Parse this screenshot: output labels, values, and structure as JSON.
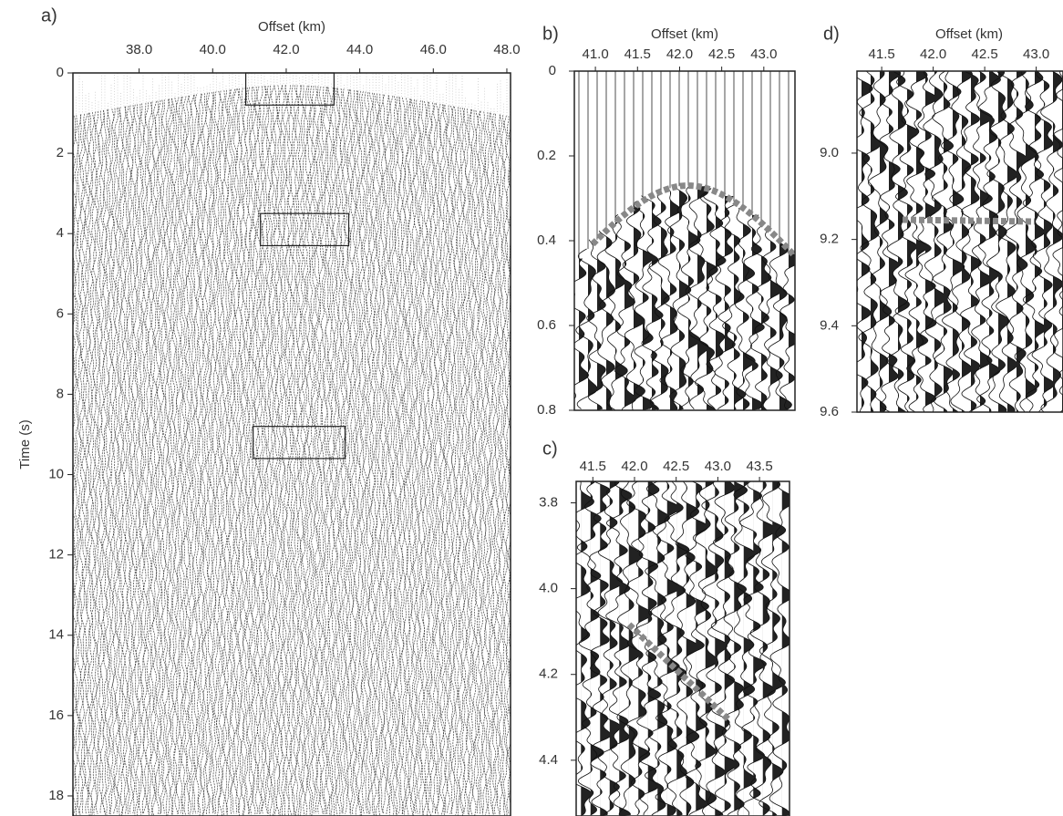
{
  "chart_data": [
    {
      "type": "seismic",
      "panel_label": "a)",
      "xlabel": "Offset (km)",
      "ylabel": "Time (s)",
      "xlim": [
        36.2,
        48.1
      ],
      "ylim": [
        0,
        18.5
      ],
      "y_inverted": true,
      "x_axis_side": "top",
      "xticks": [
        {
          "value": 38,
          "label": "38.0"
        },
        {
          "value": 40,
          "label": "40.0"
        },
        {
          "value": 42,
          "label": "42.0"
        },
        {
          "value": 44,
          "label": "44.0"
        },
        {
          "value": 46,
          "label": "46.0"
        },
        {
          "value": 48,
          "label": "48.0"
        }
      ],
      "yticks": [
        0,
        2,
        4,
        6,
        8,
        10,
        12,
        14,
        16,
        18
      ],
      "boxes": [
        [
          40.9,
          43.3,
          0,
          0.8
        ],
        [
          41.3,
          43.7,
          3.5,
          4.3
        ],
        [
          41.1,
          43.6,
          8.8,
          9.6
        ]
      ]
    },
    {
      "type": "seismic",
      "panel_label": "b)",
      "xlabel": "Offset (km)",
      "xlim": [
        40.75,
        43.37
      ],
      "ylim": [
        0,
        0.8
      ],
      "y_inverted": true,
      "x_axis_side": "top",
      "xticks": [
        {
          "value": 41,
          "label": "41.0"
        },
        41.5,
        {
          "value": 42,
          "label": "42.0"
        },
        42.5,
        {
          "value": 43,
          "label": "43.0"
        }
      ],
      "yticks": [
        0,
        0.2,
        0.4,
        0.6,
        0.8
      ]
    },
    {
      "type": "seismic",
      "panel_label": "c)",
      "xlim": [
        41.3,
        43.86
      ],
      "ylim": [
        3.75,
        4.53
      ],
      "y_inverted": true,
      "x_axis_side": "top",
      "xticks": [
        41.5,
        {
          "value": 42,
          "label": "42.0"
        },
        42.5,
        {
          "value": 43,
          "label": "43.0"
        },
        43.5
      ],
      "yticks": [
        3.8,
        {
          "value": 4,
          "label": "4.0"
        },
        4.2,
        4.4
      ]
    },
    {
      "type": "seismic",
      "panel_label": "d)",
      "xlabel": "Offset (km)",
      "xlim": [
        41.26,
        43.26
      ],
      "ylim": [
        8.81,
        9.6
      ],
      "y_inverted": true,
      "x_axis_side": "top",
      "xticks": [
        41.5,
        {
          "value": 42,
          "label": "42.0"
        },
        42.5,
        {
          "value": 43,
          "label": "43.0"
        }
      ],
      "yticks": [
        {
          "value": 9,
          "label": "9.0"
        },
        9.2,
        9.4,
        9.6
      ]
    }
  ]
}
